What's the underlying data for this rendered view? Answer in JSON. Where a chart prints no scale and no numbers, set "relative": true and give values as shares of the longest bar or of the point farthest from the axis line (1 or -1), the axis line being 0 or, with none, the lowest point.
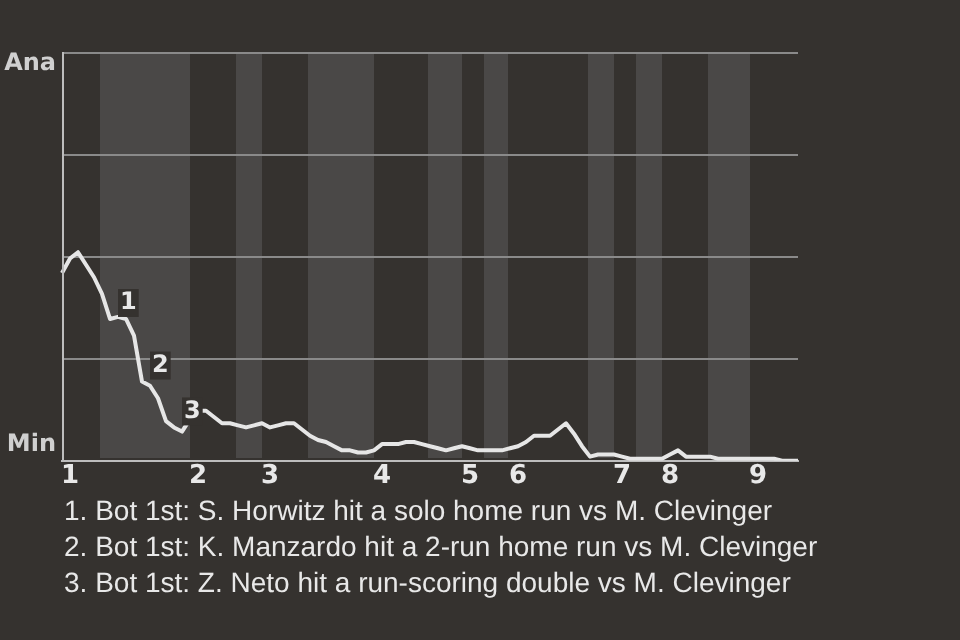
{
  "chart_data": {
    "type": "line",
    "relative": true,
    "categories": [
      null,
      "1",
      null,
      null,
      null,
      null,
      null,
      null,
      null,
      null,
      null,
      null,
      null,
      null,
      null,
      null,
      null,
      "2",
      null,
      null,
      null,
      null,
      null,
      null,
      null,
      null,
      "3",
      null,
      null,
      null,
      null,
      null,
      null,
      null,
      null,
      null,
      null,
      null,
      null,
      null,
      "4",
      null,
      null,
      null,
      null,
      null,
      null,
      null,
      null,
      null,
      null,
      "5",
      null,
      null,
      null,
      null,
      null,
      "6",
      null,
      null,
      null,
      null,
      null,
      null,
      null,
      null,
      null,
      null,
      null,
      null,
      "7",
      null,
      null,
      null,
      null,
      null,
      "8",
      null,
      null,
      null,
      null,
      null,
      null,
      null,
      null,
      null,
      null,
      "9",
      null,
      null,
      null,
      null,
      null
    ],
    "series": [
      {
        "color": "#e6e6e6",
        "values": [
          0.9,
          0.97,
          1,
          0.94,
          0.88,
          0.8,
          0.68,
          0.69,
          0.68,
          0.6,
          0.38,
          0.36,
          0.3,
          0.19,
          0.16,
          0.14,
          0.2,
          0.24,
          0.24,
          0.21,
          0.18,
          0.18,
          0.17,
          0.16,
          0.17,
          0.18,
          0.16,
          0.17,
          0.18,
          0.18,
          0.15,
          0.12,
          0.1,
          0.09,
          0.07,
          0.05,
          0.05,
          0.04,
          0.04,
          0.05,
          0.08,
          0.08,
          0.08,
          0.09,
          0.09,
          0.08,
          0.07,
          0.06,
          0.05,
          0.06,
          0.07,
          0.06,
          0.05,
          0.05,
          0.05,
          0.05,
          0.06,
          0.07,
          0.09,
          0.12,
          0.12,
          0.12,
          0.15,
          0.18,
          0.13,
          0.07,
          0.02,
          0.03,
          0.03,
          0.03,
          0.02,
          0.01,
          0.01,
          0.01,
          0.01,
          0.01,
          0.03,
          0.05,
          0.02,
          0.02,
          0.02,
          0.02,
          0.01,
          0.01,
          0.01,
          0.01,
          0.01,
          0.01,
          0.01,
          0.01,
          0,
          0,
          0
        ]
      }
    ],
    "marker": "none",
    "line_style": "solid",
    "legend": false,
    "ref_lines": [
      {
        "axis": "y",
        "value": 0.49,
        "color": "#8a8a8a"
      },
      {
        "axis": "y",
        "value": 0.98,
        "color": "#8a8a8a"
      },
      {
        "axis": "y",
        "value": 1.47,
        "color": "#8a8a8a"
      },
      {
        "axis": "y",
        "value": 1.96,
        "color": "#8a8a8a"
      }
    ],
    "annotations": [
      "Ana",
      "Min",
      {
        "text": "1",
        "y": 0.68
      },
      {
        "text": "2",
        "y": 0.38
      },
      {
        "text": "3",
        "y": 0.16
      },
      "1. Bot 1st: S. Horwitz hit a solo home run vs M. Clevinger",
      "2. Bot 1st: K. Manzardo hit a 2-run home run vs M. Clevinger",
      "3. Bot 1st: Z. Neto hit a run-scoring double vs M. Clevinger"
    ]
  }
}
